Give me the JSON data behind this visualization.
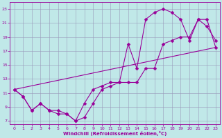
{
  "xlabel": "Windchill (Refroidissement éolien,°C)",
  "background_color": "#c0e8e8",
  "grid_color": "#9999bb",
  "line_color": "#990099",
  "xlim": [
    -0.5,
    23.5
  ],
  "ylim": [
    6.5,
    24.0
  ],
  "xticks": [
    0,
    1,
    2,
    3,
    4,
    5,
    6,
    7,
    8,
    9,
    10,
    11,
    12,
    13,
    14,
    15,
    16,
    17,
    18,
    19,
    20,
    21,
    22,
    23
  ],
  "yticks": [
    7,
    9,
    11,
    13,
    15,
    17,
    19,
    21,
    23
  ],
  "line1_x": [
    0,
    1,
    2,
    3,
    4,
    5,
    6,
    7,
    8,
    9,
    10,
    11,
    12,
    13,
    14,
    15,
    16,
    17,
    18,
    19,
    20,
    21,
    22,
    23
  ],
  "line1_y": [
    11.5,
    10.5,
    8.5,
    9.5,
    8.5,
    8.5,
    8.0,
    7.0,
    7.5,
    9.5,
    11.5,
    12.0,
    12.5,
    12.5,
    12.5,
    14.5,
    14.5,
    18.0,
    18.5,
    19.0,
    19.0,
    21.5,
    21.5,
    17.5
  ],
  "line2_x": [
    0,
    1,
    2,
    3,
    4,
    5,
    6,
    7,
    8,
    9,
    10,
    11,
    12,
    13,
    14,
    15,
    16,
    17,
    18,
    19,
    20,
    21,
    22,
    23
  ],
  "line2_y": [
    11.5,
    10.5,
    8.5,
    9.5,
    8.5,
    8.0,
    8.0,
    7.0,
    9.5,
    11.5,
    12.0,
    12.5,
    12.5,
    18.0,
    14.5,
    21.5,
    22.5,
    23.0,
    22.5,
    21.5,
    18.5,
    21.5,
    20.5,
    18.5
  ],
  "line3_x": [
    0,
    23
  ],
  "line3_y": [
    11.5,
    17.5
  ]
}
